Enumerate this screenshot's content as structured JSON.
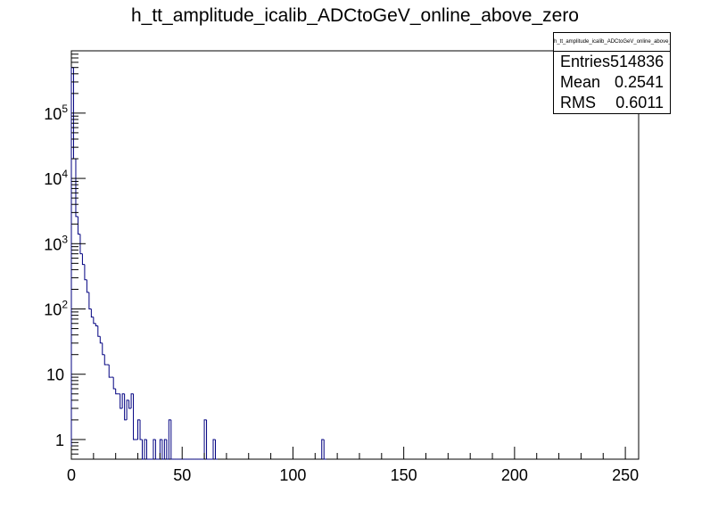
{
  "chart_data": {
    "type": "bar",
    "title": "h_tt_amplitude_icalib_ADCtoGeV_online_above_zero",
    "xlim": [
      0,
      256
    ],
    "ylim": [
      0.5,
      900000
    ],
    "y_scale": "log",
    "bin_width": 1,
    "x_ticks": [
      0,
      50,
      100,
      150,
      200,
      250
    ],
    "y_ticks": [
      {
        "value": 1,
        "label": "1"
      },
      {
        "value": 10,
        "label": "10"
      },
      {
        "value": 100,
        "label": "10",
        "exp": "2"
      },
      {
        "value": 1000,
        "label": "10",
        "exp": "3"
      },
      {
        "value": 10000,
        "label": "10",
        "exp": "4"
      },
      {
        "value": 100000,
        "label": "10",
        "exp": "5"
      }
    ],
    "bins": [
      {
        "x": 0,
        "y": 500000
      },
      {
        "x": 1,
        "y": 20000
      },
      {
        "x": 2,
        "y": 2600
      },
      {
        "x": 3,
        "y": 1400
      },
      {
        "x": 4,
        "y": 700
      },
      {
        "x": 5,
        "y": 480
      },
      {
        "x": 6,
        "y": 280
      },
      {
        "x": 7,
        "y": 180
      },
      {
        "x": 8,
        "y": 100
      },
      {
        "x": 9,
        "y": 75
      },
      {
        "x": 10,
        "y": 60
      },
      {
        "x": 11,
        "y": 55
      },
      {
        "x": 12,
        "y": 38
      },
      {
        "x": 13,
        "y": 30
      },
      {
        "x": 14,
        "y": 20
      },
      {
        "x": 15,
        "y": 14
      },
      {
        "x": 16,
        "y": 14
      },
      {
        "x": 17,
        "y": 9
      },
      {
        "x": 18,
        "y": 9
      },
      {
        "x": 19,
        "y": 6
      },
      {
        "x": 20,
        "y": 5
      },
      {
        "x": 21,
        "y": 5
      },
      {
        "x": 22,
        "y": 3
      },
      {
        "x": 23,
        "y": 5
      },
      {
        "x": 24,
        "y": 2
      },
      {
        "x": 25,
        "y": 4
      },
      {
        "x": 26,
        "y": 3
      },
      {
        "x": 27,
        "y": 5
      },
      {
        "x": 28,
        "y": 1
      },
      {
        "x": 29,
        "y": 1
      },
      {
        "x": 30,
        "y": 2
      },
      {
        "x": 31,
        "y": 1
      },
      {
        "x": 32,
        "y": 0
      },
      {
        "x": 33,
        "y": 1
      },
      {
        "x": 34,
        "y": 0
      },
      {
        "x": 35,
        "y": 0
      },
      {
        "x": 36,
        "y": 0
      },
      {
        "x": 37,
        "y": 1
      },
      {
        "x": 38,
        "y": 0
      },
      {
        "x": 39,
        "y": 0
      },
      {
        "x": 40,
        "y": 1
      },
      {
        "x": 41,
        "y": 0
      },
      {
        "x": 42,
        "y": 1
      },
      {
        "x": 43,
        "y": 0
      },
      {
        "x": 44,
        "y": 2
      },
      {
        "x": 45,
        "y": 0
      },
      {
        "x": 46,
        "y": 0
      },
      {
        "x": 47,
        "y": 0
      },
      {
        "x": 48,
        "y": 0
      },
      {
        "x": 49,
        "y": 0
      },
      {
        "x": 50,
        "y": 0
      },
      {
        "x": 51,
        "y": 0
      },
      {
        "x": 52,
        "y": 0
      },
      {
        "x": 53,
        "y": 0
      },
      {
        "x": 54,
        "y": 0
      },
      {
        "x": 55,
        "y": 0
      },
      {
        "x": 56,
        "y": 0
      },
      {
        "x": 57,
        "y": 0
      },
      {
        "x": 58,
        "y": 0
      },
      {
        "x": 59,
        "y": 0
      },
      {
        "x": 60,
        "y": 2
      },
      {
        "x": 61,
        "y": 0
      },
      {
        "x": 62,
        "y": 0
      },
      {
        "x": 63,
        "y": 0
      },
      {
        "x": 64,
        "y": 1
      },
      {
        "x": 65,
        "y": 0
      },
      {
        "x": 113,
        "y": 1
      },
      {
        "x": 114,
        "y": 0
      }
    ],
    "stats": {
      "title": "h_tt_amplitude_icalib_ADCtoGeV_online_above_zero",
      "entries_label": "Entries",
      "entries": "514836",
      "mean_label": "Mean",
      "mean": "0.2541",
      "rms_label": "RMS",
      "rms": "0.6011"
    },
    "line_color": "#000080"
  }
}
